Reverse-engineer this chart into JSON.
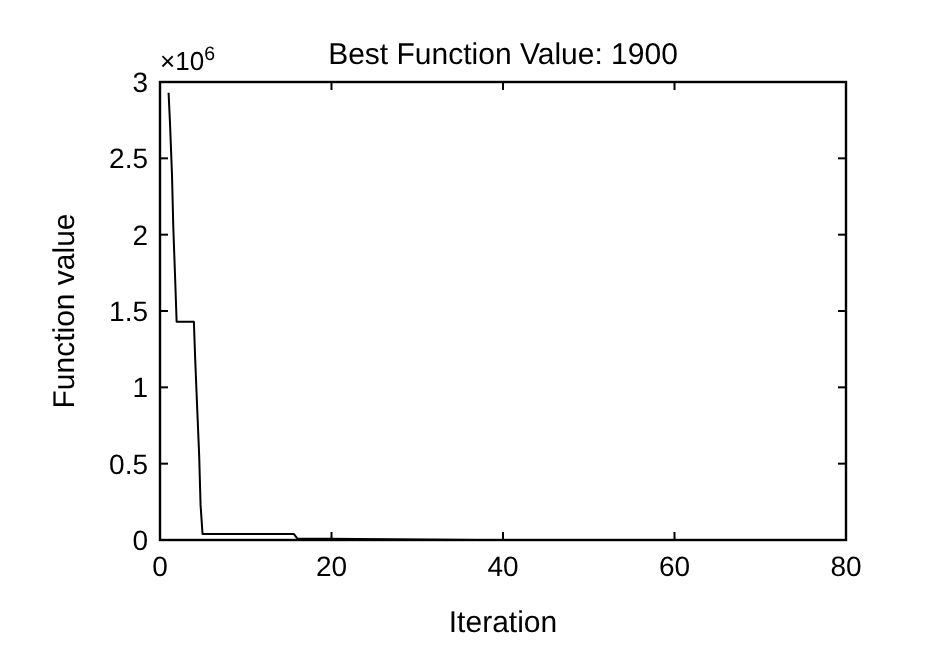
{
  "chart_data": {
    "type": "line",
    "title": "Best Function Value: 1900",
    "xlabel": "Iteration",
    "ylabel": "Function value",
    "annotations": [
      "×10$^{6}$"
    ],
    "x": [
      1,
      1.16,
      1.4,
      1.55,
      1.78,
      1.94,
      3.95,
      4.1,
      4.34,
      4.57,
      4.73,
      4.96,
      11.1,
      15.6,
      16,
      37,
      80
    ],
    "series": [
      {
        "color": "#000000",
        "values": [
          2.93,
          2.74,
          2.39,
          2.05,
          1.69,
          1.43,
          1.43,
          1.19,
          0.86,
          0.55,
          0.23,
          0.04,
          0.04,
          0.04,
          0.01,
          0,
          0
        ]
      }
    ],
    "xlim": [
      0,
      80
    ],
    "xticks": [
      0,
      20,
      40,
      60,
      80
    ],
    "ylim": [
      0,
      3
    ],
    "yticks": [
      0,
      0.5,
      1,
      1.5,
      2,
      2.5,
      3
    ],
    "grid": false,
    "marker": "none",
    "line_style": "solid"
  }
}
